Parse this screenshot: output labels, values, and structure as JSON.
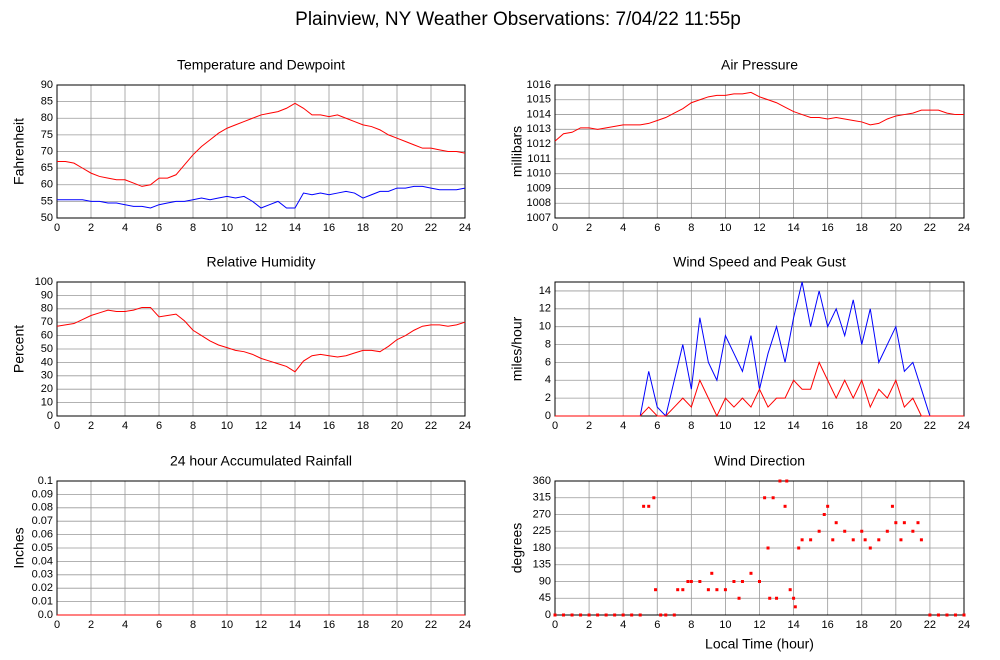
{
  "title": "Plainview, NY Weather Observations: 7/04/22 11:55p",
  "chart_data": [
    {
      "type": "line",
      "title": "Temperature and Dewpoint",
      "ylabel": "Fahrenheit",
      "xlim": [
        0,
        24
      ],
      "xticks": [
        0,
        2,
        4,
        6,
        8,
        10,
        12,
        14,
        16,
        18,
        20,
        22,
        24
      ],
      "ylim": [
        50,
        90
      ],
      "yticks": [
        50,
        55,
        60,
        65,
        70,
        75,
        80,
        85,
        90
      ],
      "grid": true,
      "x": [
        0,
        0.5,
        1,
        1.5,
        2,
        2.5,
        3,
        3.5,
        4,
        4.5,
        5,
        5.5,
        6,
        6.5,
        7,
        7.5,
        8,
        8.5,
        9,
        9.5,
        10,
        10.5,
        11,
        11.5,
        12,
        12.5,
        13,
        13.5,
        14,
        14.5,
        15,
        15.5,
        16,
        16.5,
        17,
        17.5,
        18,
        18.5,
        19,
        19.5,
        20,
        20.5,
        21,
        21.5,
        22,
        22.5,
        23,
        23.5,
        24
      ],
      "series": [
        {
          "color": "#ff0000",
          "values": [
            67,
            67,
            66.5,
            65,
            63.5,
            62.5,
            62,
            61.5,
            61.5,
            60.5,
            59.5,
            60,
            62,
            62,
            63,
            66,
            69,
            71.5,
            73.5,
            75.5,
            77,
            78,
            79,
            80,
            81,
            81.5,
            82,
            83,
            84.5,
            83,
            81,
            81,
            80.5,
            81,
            80,
            79,
            78,
            77.5,
            76.5,
            75,
            74,
            73,
            72,
            71,
            71,
            70.5,
            70,
            70,
            69.5
          ]
        },
        {
          "color": "#0000ff",
          "values": [
            55.5,
            55.5,
            55.5,
            55.5,
            55,
            55,
            54.5,
            54.5,
            54,
            53.5,
            53.5,
            53,
            54,
            54.5,
            55,
            55,
            55.5,
            56,
            55.5,
            56,
            56.5,
            56,
            56.5,
            55,
            53,
            54,
            55,
            53,
            53,
            57.5,
            57,
            57.5,
            57,
            57.5,
            58,
            57.5,
            56,
            57,
            58,
            58,
            59,
            59,
            59.5,
            59.5,
            59,
            58.5,
            58.5,
            58.5,
            59
          ]
        }
      ]
    },
    {
      "type": "line",
      "title": "Air Pressure",
      "ylabel": "millibars",
      "xlim": [
        0,
        24
      ],
      "xticks": [
        0,
        2,
        4,
        6,
        8,
        10,
        12,
        14,
        16,
        18,
        20,
        22,
        24
      ],
      "ylim": [
        1007,
        1016
      ],
      "yticks": [
        1007,
        1008,
        1009,
        1010,
        1011,
        1012,
        1013,
        1014,
        1015,
        1016
      ],
      "grid": true,
      "x": [
        0,
        0.5,
        1,
        1.5,
        2,
        2.5,
        3,
        3.5,
        4,
        4.5,
        5,
        5.5,
        6,
        6.5,
        7,
        7.5,
        8,
        8.5,
        9,
        9.5,
        10,
        10.5,
        11,
        11.5,
        12,
        12.5,
        13,
        13.5,
        14,
        14.5,
        15,
        15.5,
        16,
        16.5,
        17,
        17.5,
        18,
        18.5,
        19,
        19.5,
        20,
        20.5,
        21,
        21.5,
        22,
        22.5,
        23,
        23.5,
        24
      ],
      "series": [
        {
          "color": "#ff0000",
          "values": [
            1012.2,
            1012.7,
            1012.8,
            1013.1,
            1013.1,
            1013.0,
            1013.1,
            1013.2,
            1013.3,
            1013.3,
            1013.3,
            1013.4,
            1013.6,
            1013.8,
            1014.1,
            1014.4,
            1014.8,
            1015.0,
            1015.2,
            1015.3,
            1015.3,
            1015.4,
            1015.4,
            1015.5,
            1015.2,
            1015.0,
            1014.8,
            1014.5,
            1014.2,
            1014.0,
            1013.8,
            1013.8,
            1013.7,
            1013.8,
            1013.7,
            1013.6,
            1013.5,
            1013.3,
            1013.4,
            1013.7,
            1013.9,
            1014.0,
            1014.1,
            1014.3,
            1014.3,
            1014.3,
            1014.1,
            1014.0,
            1014.0
          ]
        }
      ]
    },
    {
      "type": "line",
      "title": "Relative Humidity",
      "ylabel": "Percent",
      "xlim": [
        0,
        24
      ],
      "xticks": [
        0,
        2,
        4,
        6,
        8,
        10,
        12,
        14,
        16,
        18,
        20,
        22,
        24
      ],
      "ylim": [
        0,
        100
      ],
      "yticks": [
        0,
        10,
        20,
        30,
        40,
        50,
        60,
        70,
        80,
        90,
        100
      ],
      "grid": true,
      "x": [
        0,
        0.5,
        1,
        1.5,
        2,
        2.5,
        3,
        3.5,
        4,
        4.5,
        5,
        5.5,
        6,
        6.5,
        7,
        7.5,
        8,
        8.5,
        9,
        9.5,
        10,
        10.5,
        11,
        11.5,
        12,
        12.5,
        13,
        13.5,
        14,
        14.5,
        15,
        15.5,
        16,
        16.5,
        17,
        17.5,
        18,
        18.5,
        19,
        19.5,
        20,
        20.5,
        21,
        21.5,
        22,
        22.5,
        23,
        23.5,
        24
      ],
      "series": [
        {
          "color": "#ff0000",
          "values": [
            67,
            68,
            69,
            72,
            75,
            77,
            79,
            78,
            78,
            79,
            81,
            81,
            74,
            75,
            76,
            71,
            64,
            60,
            56,
            53,
            51,
            49,
            48,
            46,
            43,
            41,
            39,
            37,
            33,
            41,
            45,
            46,
            45,
            44,
            45,
            47,
            49,
            49,
            48,
            52,
            57,
            60,
            64,
            67,
            68,
            68,
            67,
            68,
            70
          ]
        }
      ]
    },
    {
      "type": "line",
      "title": "Wind Speed and Peak Gust",
      "ylabel": "miles/hour",
      "xlim": [
        0,
        24
      ],
      "xticks": [
        0,
        2,
        4,
        6,
        8,
        10,
        12,
        14,
        16,
        18,
        20,
        22,
        24
      ],
      "ylim": [
        0,
        15
      ],
      "yticks": [
        0,
        2,
        4,
        6,
        8,
        10,
        12,
        14
      ],
      "grid": true,
      "x": [
        0,
        0.5,
        1,
        1.5,
        2,
        2.5,
        3,
        3.5,
        4,
        4.5,
        5,
        5.5,
        6,
        6.5,
        7,
        7.5,
        8,
        8.5,
        9,
        9.5,
        10,
        10.5,
        11,
        11.5,
        12,
        12.5,
        13,
        13.5,
        14,
        14.5,
        15,
        15.5,
        16,
        16.5,
        17,
        17.5,
        18,
        18.5,
        19,
        19.5,
        20,
        20.5,
        21,
        21.5,
        22,
        22.5,
        23,
        23.5,
        24
      ],
      "series": [
        {
          "color": "#0000ff",
          "values": [
            0,
            0,
            0,
            0,
            0,
            0,
            0,
            0,
            0,
            0,
            0,
            5,
            1,
            0,
            4,
            8,
            3,
            11,
            6,
            4,
            9,
            7,
            5,
            9,
            3,
            7,
            10,
            6,
            11,
            15,
            10,
            14,
            10,
            12,
            9,
            13,
            8,
            12,
            6,
            8,
            10,
            5,
            6,
            3,
            0,
            0,
            0,
            0,
            0
          ]
        },
        {
          "color": "#ff0000",
          "values": [
            0,
            0,
            0,
            0,
            0,
            0,
            0,
            0,
            0,
            0,
            0,
            1,
            0,
            0,
            1,
            2,
            1,
            4,
            2,
            0,
            2,
            1,
            2,
            1,
            3,
            1,
            2,
            2,
            4,
            3,
            3,
            6,
            4,
            2,
            4,
            2,
            4,
            1,
            3,
            2,
            4,
            1,
            2,
            0,
            0,
            0,
            0,
            0,
            0
          ]
        }
      ]
    },
    {
      "type": "line",
      "title": "24 hour Accumulated Rainfall",
      "ylabel": "Inches",
      "xlim": [
        0,
        24
      ],
      "xticks": [
        0,
        2,
        4,
        6,
        8,
        10,
        12,
        14,
        16,
        18,
        20,
        22,
        24
      ],
      "ylim": [
        0,
        0.1
      ],
      "yticks": [
        {
          "value": 0,
          "label": "0.0"
        },
        0.01,
        0.02,
        0.03,
        0.04,
        0.05,
        0.06,
        0.07,
        0.08,
        0.09,
        0.1
      ],
      "grid": true,
      "x": [
        0,
        24
      ],
      "series": [
        {
          "color": "#ff0000",
          "values": [
            0,
            0
          ]
        }
      ]
    },
    {
      "type": "scatter",
      "title": "Wind Direction",
      "ylabel": "degrees",
      "xlabel": "Local Time (hour)",
      "xlim": [
        0,
        24
      ],
      "xticks": [
        0,
        2,
        4,
        6,
        8,
        10,
        12,
        14,
        16,
        18,
        20,
        22,
        24
      ],
      "ylim": [
        0,
        360
      ],
      "yticks": [
        0,
        45,
        90,
        135,
        180,
        225,
        270,
        315,
        360
      ],
      "grid": true,
      "x": [
        0,
        0.5,
        1,
        1.5,
        2,
        2.5,
        3,
        3.5,
        4,
        4.5,
        5,
        5.2,
        5.5,
        5.8,
        5.9,
        6.2,
        6.5,
        7,
        7.2,
        7.5,
        7.8,
        8,
        8.5,
        9,
        9.2,
        9.5,
        10,
        10.5,
        10.8,
        11,
        11.5,
        12,
        12.3,
        12.5,
        12.6,
        12.8,
        13,
        13.2,
        13.5,
        13.6,
        13.8,
        14,
        14.1,
        14.3,
        14.5,
        15,
        15.5,
        15.8,
        16,
        16.3,
        16.5,
        17,
        17.5,
        18,
        18.2,
        18.5,
        19,
        19.5,
        19.8,
        20,
        20.3,
        20.5,
        21,
        21.3,
        21.5,
        22,
        22.5,
        23,
        23.5,
        24
      ],
      "series": [
        {
          "color": "#ff0000",
          "values": [
            0,
            0,
            0,
            0,
            0,
            0,
            0,
            0,
            0,
            0,
            0,
            292,
            292,
            315,
            68,
            0,
            0,
            0,
            68,
            68,
            90,
            90,
            90,
            68,
            112,
            68,
            68,
            90,
            45,
            90,
            112,
            90,
            315,
            180,
            45,
            315,
            45,
            360,
            292,
            360,
            68,
            45,
            22,
            180,
            202,
            202,
            225,
            270,
            292,
            202,
            248,
            225,
            202,
            225,
            202,
            180,
            202,
            225,
            292,
            248,
            202,
            248,
            225,
            248,
            202,
            0,
            0,
            0,
            0,
            0
          ]
        }
      ]
    }
  ]
}
